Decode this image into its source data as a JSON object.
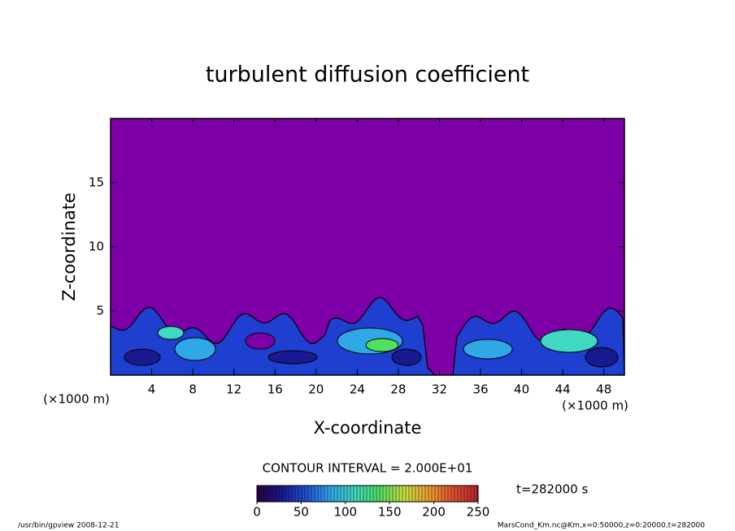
{
  "chart_data": {
    "type": "contour",
    "title": "turbulent diffusion coefficient",
    "xlabel": "X-coordinate",
    "ylabel": "Z-coordinate",
    "x_unit": "(×1000 m)",
    "xlim": [
      0,
      50
    ],
    "xticks": [
      4,
      8,
      12,
      16,
      20,
      24,
      28,
      32,
      36,
      40,
      44,
      48
    ],
    "ylim": [
      0,
      20
    ],
    "yticks": [
      5,
      10,
      15
    ],
    "contour_interval": "CONTOUR INTERVAL = 2.000E+01",
    "time_label": "t=282000 s",
    "colorbar": {
      "lim": [
        0,
        250
      ],
      "ticks": [
        0,
        50,
        100,
        150,
        200,
        250
      ],
      "colors": [
        "#2a0040",
        "#1a1a90",
        "#1f50d8",
        "#30a8e8",
        "#40d8c0",
        "#50e060",
        "#c8e040",
        "#f0a030",
        "#e05030",
        "#c02030"
      ]
    },
    "background_color": "#7d00a6",
    "footer_left": "/usr/bin/gpview   2008-12-21",
    "footer_right": "MarsCond_Km.nc@Km,x=0:50000,z=0:20000,t=282000"
  }
}
